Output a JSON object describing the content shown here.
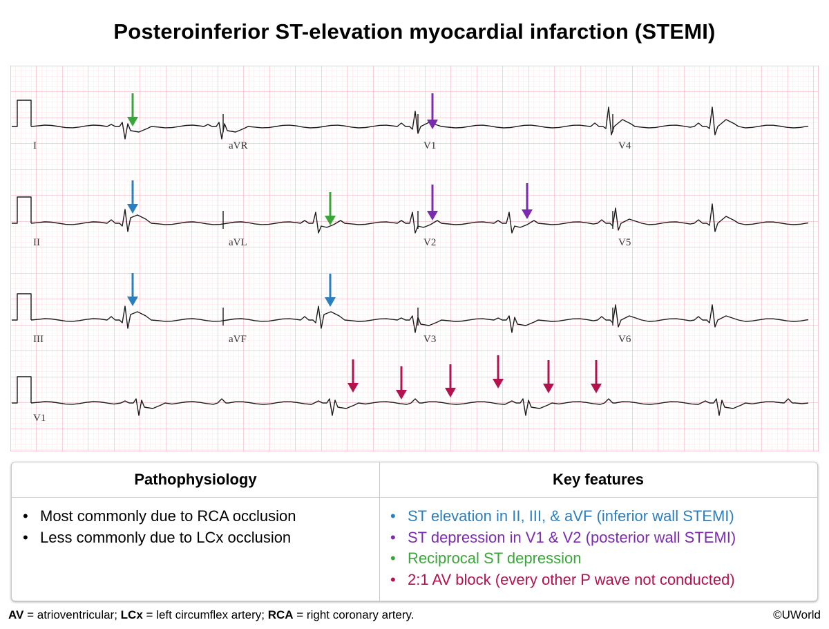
{
  "title": "Posteroinferior ST-elevation myocardial infarction (STEMI)",
  "colors": {
    "grid_major": "#f2a5b3",
    "grid_minor": "#fbdde3",
    "trace": "#1a1a1a",
    "inferior": "#2a7fc0",
    "posterior": "#7b2bb0",
    "reciprocal": "#3aa63a",
    "av_block": "#b3124f"
  },
  "ecg": {
    "rows": [
      {
        "leads": [
          "I",
          "aVR",
          "V1",
          "V4"
        ]
      },
      {
        "leads": [
          "II",
          "aVL",
          "V2",
          "V5"
        ]
      },
      {
        "leads": [
          "III",
          "aVF",
          "V3",
          "V6"
        ]
      },
      {
        "leads": [
          "V1"
        ]
      }
    ]
  },
  "table": {
    "left_header": "Pathophysiology",
    "right_header": "Key features",
    "pathophysiology": [
      "Most commonly due to RCA occlusion",
      "Less commonly due to LCx occlusion"
    ],
    "key_features": [
      {
        "text": "ST elevation in II, III, & aVF (inferior wall STEMI)",
        "color": "#2a7fc0"
      },
      {
        "text": "ST depression in V1 & V2 (posterior wall STEMI)",
        "color": "#7b2bb0"
      },
      {
        "text": "Reciprocal ST depression",
        "color": "#3aa63a"
      },
      {
        "text": "2:1 AV block (every other P wave not conducted)",
        "color": "#b3124f"
      }
    ]
  },
  "footnote": [
    {
      "term": "AV",
      "def": " = atrioventricular; "
    },
    {
      "term": "LCx",
      "def": " = left circumflex artery; "
    },
    {
      "term": "RCA",
      "def": " = right coronary artery."
    }
  ],
  "copyright": "©UWorld"
}
